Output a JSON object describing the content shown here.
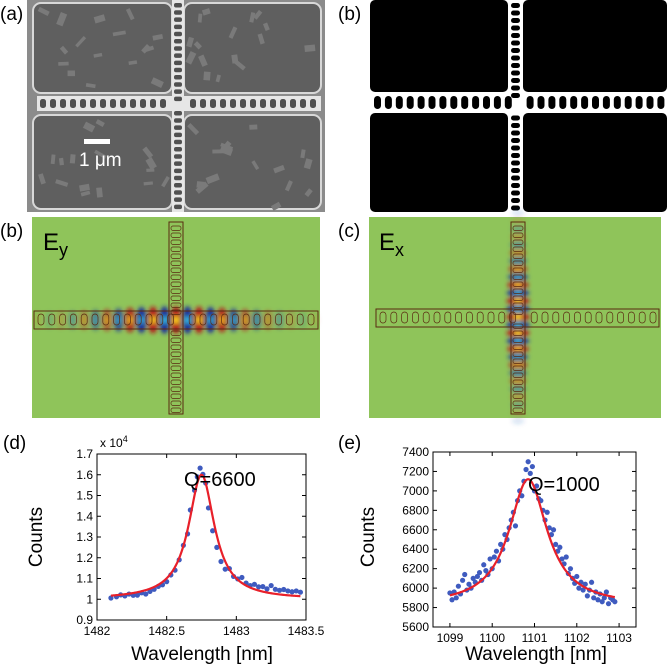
{
  "figure": {
    "panel_labels": [
      "(a)",
      "(b)",
      "(b)",
      "(c)",
      "(d)",
      "(e)"
    ],
    "sem": {
      "scale_bar_label": "1 μm"
    },
    "field_maps": {
      "left": {
        "label_main": "E",
        "label_sub": "y"
      },
      "right": {
        "label_main": "E",
        "label_sub": "x"
      }
    }
  },
  "chart_data": [
    {
      "type": "scatter",
      "panel": "(d)",
      "xlabel": "Wavelength [nm]",
      "ylabel": "Counts",
      "xlim": [
        1482,
        1483.5
      ],
      "ylim": [
        0.9,
        1.7
      ],
      "y_multiplier_label": "x 10",
      "y_multiplier_exp": "4",
      "xticks": [
        1482,
        1482.5,
        1483,
        1483.5
      ],
      "xtick_labels": [
        "1482",
        "1482.5",
        "1483",
        "1483.5"
      ],
      "yticks": [
        0.9,
        1.0,
        1.1,
        1.2,
        1.3,
        1.4,
        1.5,
        1.6,
        1.7
      ],
      "ytick_labels": [
        "0.9",
        "1",
        "1.1",
        "1.2",
        "1.3",
        "1.4",
        "1.5",
        "1.6",
        "1.7"
      ],
      "annotation": "Q=6600",
      "fit": {
        "type": "lorentzian",
        "center": 1482.75,
        "fwhm": 0.225,
        "amplitude": 0.6,
        "baseline": 1.0,
        "color": "#e8202a"
      },
      "marker_color": "#3f5bbf",
      "points": [
        [
          1482.1,
          1.006
        ],
        [
          1482.14,
          1.012
        ],
        [
          1482.17,
          1.021
        ],
        [
          1482.2,
          1.016
        ],
        [
          1482.23,
          1.025
        ],
        [
          1482.26,
          1.019
        ],
        [
          1482.29,
          1.02
        ],
        [
          1482.32,
          1.031
        ],
        [
          1482.35,
          1.025
        ],
        [
          1482.38,
          1.038
        ],
        [
          1482.41,
          1.048
        ],
        [
          1482.44,
          1.062
        ],
        [
          1482.47,
          1.07
        ],
        [
          1482.5,
          1.085
        ],
        [
          1482.53,
          1.117
        ],
        [
          1482.56,
          1.14
        ],
        [
          1482.59,
          1.19
        ],
        [
          1482.62,
          1.26
        ],
        [
          1482.65,
          1.315
        ],
        [
          1482.67,
          1.43
        ],
        [
          1482.7,
          1.525
        ],
        [
          1482.72,
          1.59
        ],
        [
          1482.74,
          1.632
        ],
        [
          1482.76,
          1.602
        ],
        [
          1482.78,
          1.56
        ],
        [
          1482.8,
          1.44
        ],
        [
          1482.83,
          1.33
        ],
        [
          1482.86,
          1.25
        ],
        [
          1482.89,
          1.182
        ],
        [
          1482.92,
          1.145
        ],
        [
          1482.95,
          1.148
        ],
        [
          1482.98,
          1.11
        ],
        [
          1483.01,
          1.098
        ],
        [
          1483.04,
          1.105
        ],
        [
          1483.07,
          1.078
        ],
        [
          1483.1,
          1.066
        ],
        [
          1483.13,
          1.072
        ],
        [
          1483.16,
          1.06
        ],
        [
          1483.19,
          1.061
        ],
        [
          1483.22,
          1.05
        ],
        [
          1483.25,
          1.066
        ],
        [
          1483.28,
          1.048
        ],
        [
          1483.31,
          1.043
        ],
        [
          1483.34,
          1.047
        ],
        [
          1483.37,
          1.04
        ],
        [
          1483.4,
          1.036
        ],
        [
          1483.43,
          1.04
        ],
        [
          1483.46,
          1.034
        ]
      ]
    },
    {
      "type": "scatter",
      "panel": "(e)",
      "xlabel": "Wavelength [nm]",
      "ylabel": "Counts",
      "xlim": [
        1098.6,
        1103.4
      ],
      "ylim": [
        5600,
        7400
      ],
      "xticks": [
        1099,
        1100,
        1101,
        1102,
        1103
      ],
      "xtick_labels": [
        "1099",
        "1100",
        "1101",
        "1102",
        "1103"
      ],
      "yticks": [
        5600,
        5800,
        6000,
        6200,
        6400,
        6600,
        6800,
        7000,
        7200,
        7400
      ],
      "ytick_labels": [
        "5600",
        "5800",
        "6000",
        "6200",
        "6400",
        "6600",
        "6800",
        "7000",
        "7200",
        "7400"
      ],
      "annotation": "Q=1000",
      "fit": {
        "type": "lorentzian",
        "center": 1100.85,
        "fwhm": 1.1,
        "amplitude": 1300,
        "baseline": 5820,
        "color": "#e8202a"
      },
      "marker_color": "#3f5bbf",
      "points": [
        [
          1099.0,
          5950
        ],
        [
          1099.05,
          5880
        ],
        [
          1099.1,
          5960
        ],
        [
          1099.15,
          5900
        ],
        [
          1099.2,
          6020
        ],
        [
          1099.25,
          5940
        ],
        [
          1099.3,
          6080
        ],
        [
          1099.35,
          6140
        ],
        [
          1099.4,
          5980
        ],
        [
          1099.45,
          6040
        ],
        [
          1099.5,
          6000
        ],
        [
          1099.55,
          6100
        ],
        [
          1099.6,
          6060
        ],
        [
          1099.65,
          6120
        ],
        [
          1099.7,
          6160
        ],
        [
          1099.75,
          6080
        ],
        [
          1099.8,
          6240
        ],
        [
          1099.85,
          6180
        ],
        [
          1099.9,
          6140
        ],
        [
          1099.95,
          6300
        ],
        [
          1100.0,
          6200
        ],
        [
          1100.05,
          6320
        ],
        [
          1100.1,
          6380
        ],
        [
          1100.15,
          6280
        ],
        [
          1100.2,
          6450
        ],
        [
          1100.25,
          6400
        ],
        [
          1100.3,
          6550
        ],
        [
          1100.35,
          6500
        ],
        [
          1100.4,
          6620
        ],
        [
          1100.45,
          6700
        ],
        [
          1100.5,
          6780
        ],
        [
          1100.55,
          6640
        ],
        [
          1100.6,
          6900
        ],
        [
          1100.65,
          7000
        ],
        [
          1100.7,
          6950
        ],
        [
          1100.75,
          7100
        ],
        [
          1100.8,
          7220
        ],
        [
          1100.85,
          7300
        ],
        [
          1100.9,
          7180
        ],
        [
          1100.95,
          7250
        ],
        [
          1101.0,
          7000
        ],
        [
          1101.05,
          7050
        ],
        [
          1101.1,
          6920
        ],
        [
          1101.15,
          6900
        ],
        [
          1101.2,
          6800
        ],
        [
          1101.25,
          6700
        ],
        [
          1101.3,
          6780
        ],
        [
          1101.35,
          6620
        ],
        [
          1101.4,
          6550
        ],
        [
          1101.45,
          6600
        ],
        [
          1101.5,
          6450
        ],
        [
          1101.55,
          6380
        ],
        [
          1101.6,
          6420
        ],
        [
          1101.65,
          6300
        ],
        [
          1101.7,
          6250
        ],
        [
          1101.75,
          6320
        ],
        [
          1101.8,
          6150
        ],
        [
          1101.85,
          6200
        ],
        [
          1101.9,
          6100
        ],
        [
          1101.95,
          6050
        ],
        [
          1102.0,
          6120
        ],
        [
          1102.05,
          6000
        ],
        [
          1102.1,
          6060
        ],
        [
          1102.15,
          5980
        ],
        [
          1102.2,
          6040
        ],
        [
          1102.25,
          5920
        ],
        [
          1102.3,
          5980
        ],
        [
          1102.35,
          6060
        ],
        [
          1102.4,
          5900
        ],
        [
          1102.45,
          5960
        ],
        [
          1102.5,
          5880
        ],
        [
          1102.55,
          5940
        ],
        [
          1102.6,
          5860
        ],
        [
          1102.65,
          5900
        ],
        [
          1102.7,
          5960
        ],
        [
          1102.75,
          5840
        ],
        [
          1102.8,
          5900
        ],
        [
          1102.85,
          5880
        ],
        [
          1102.9,
          5860
        ]
      ]
    }
  ]
}
